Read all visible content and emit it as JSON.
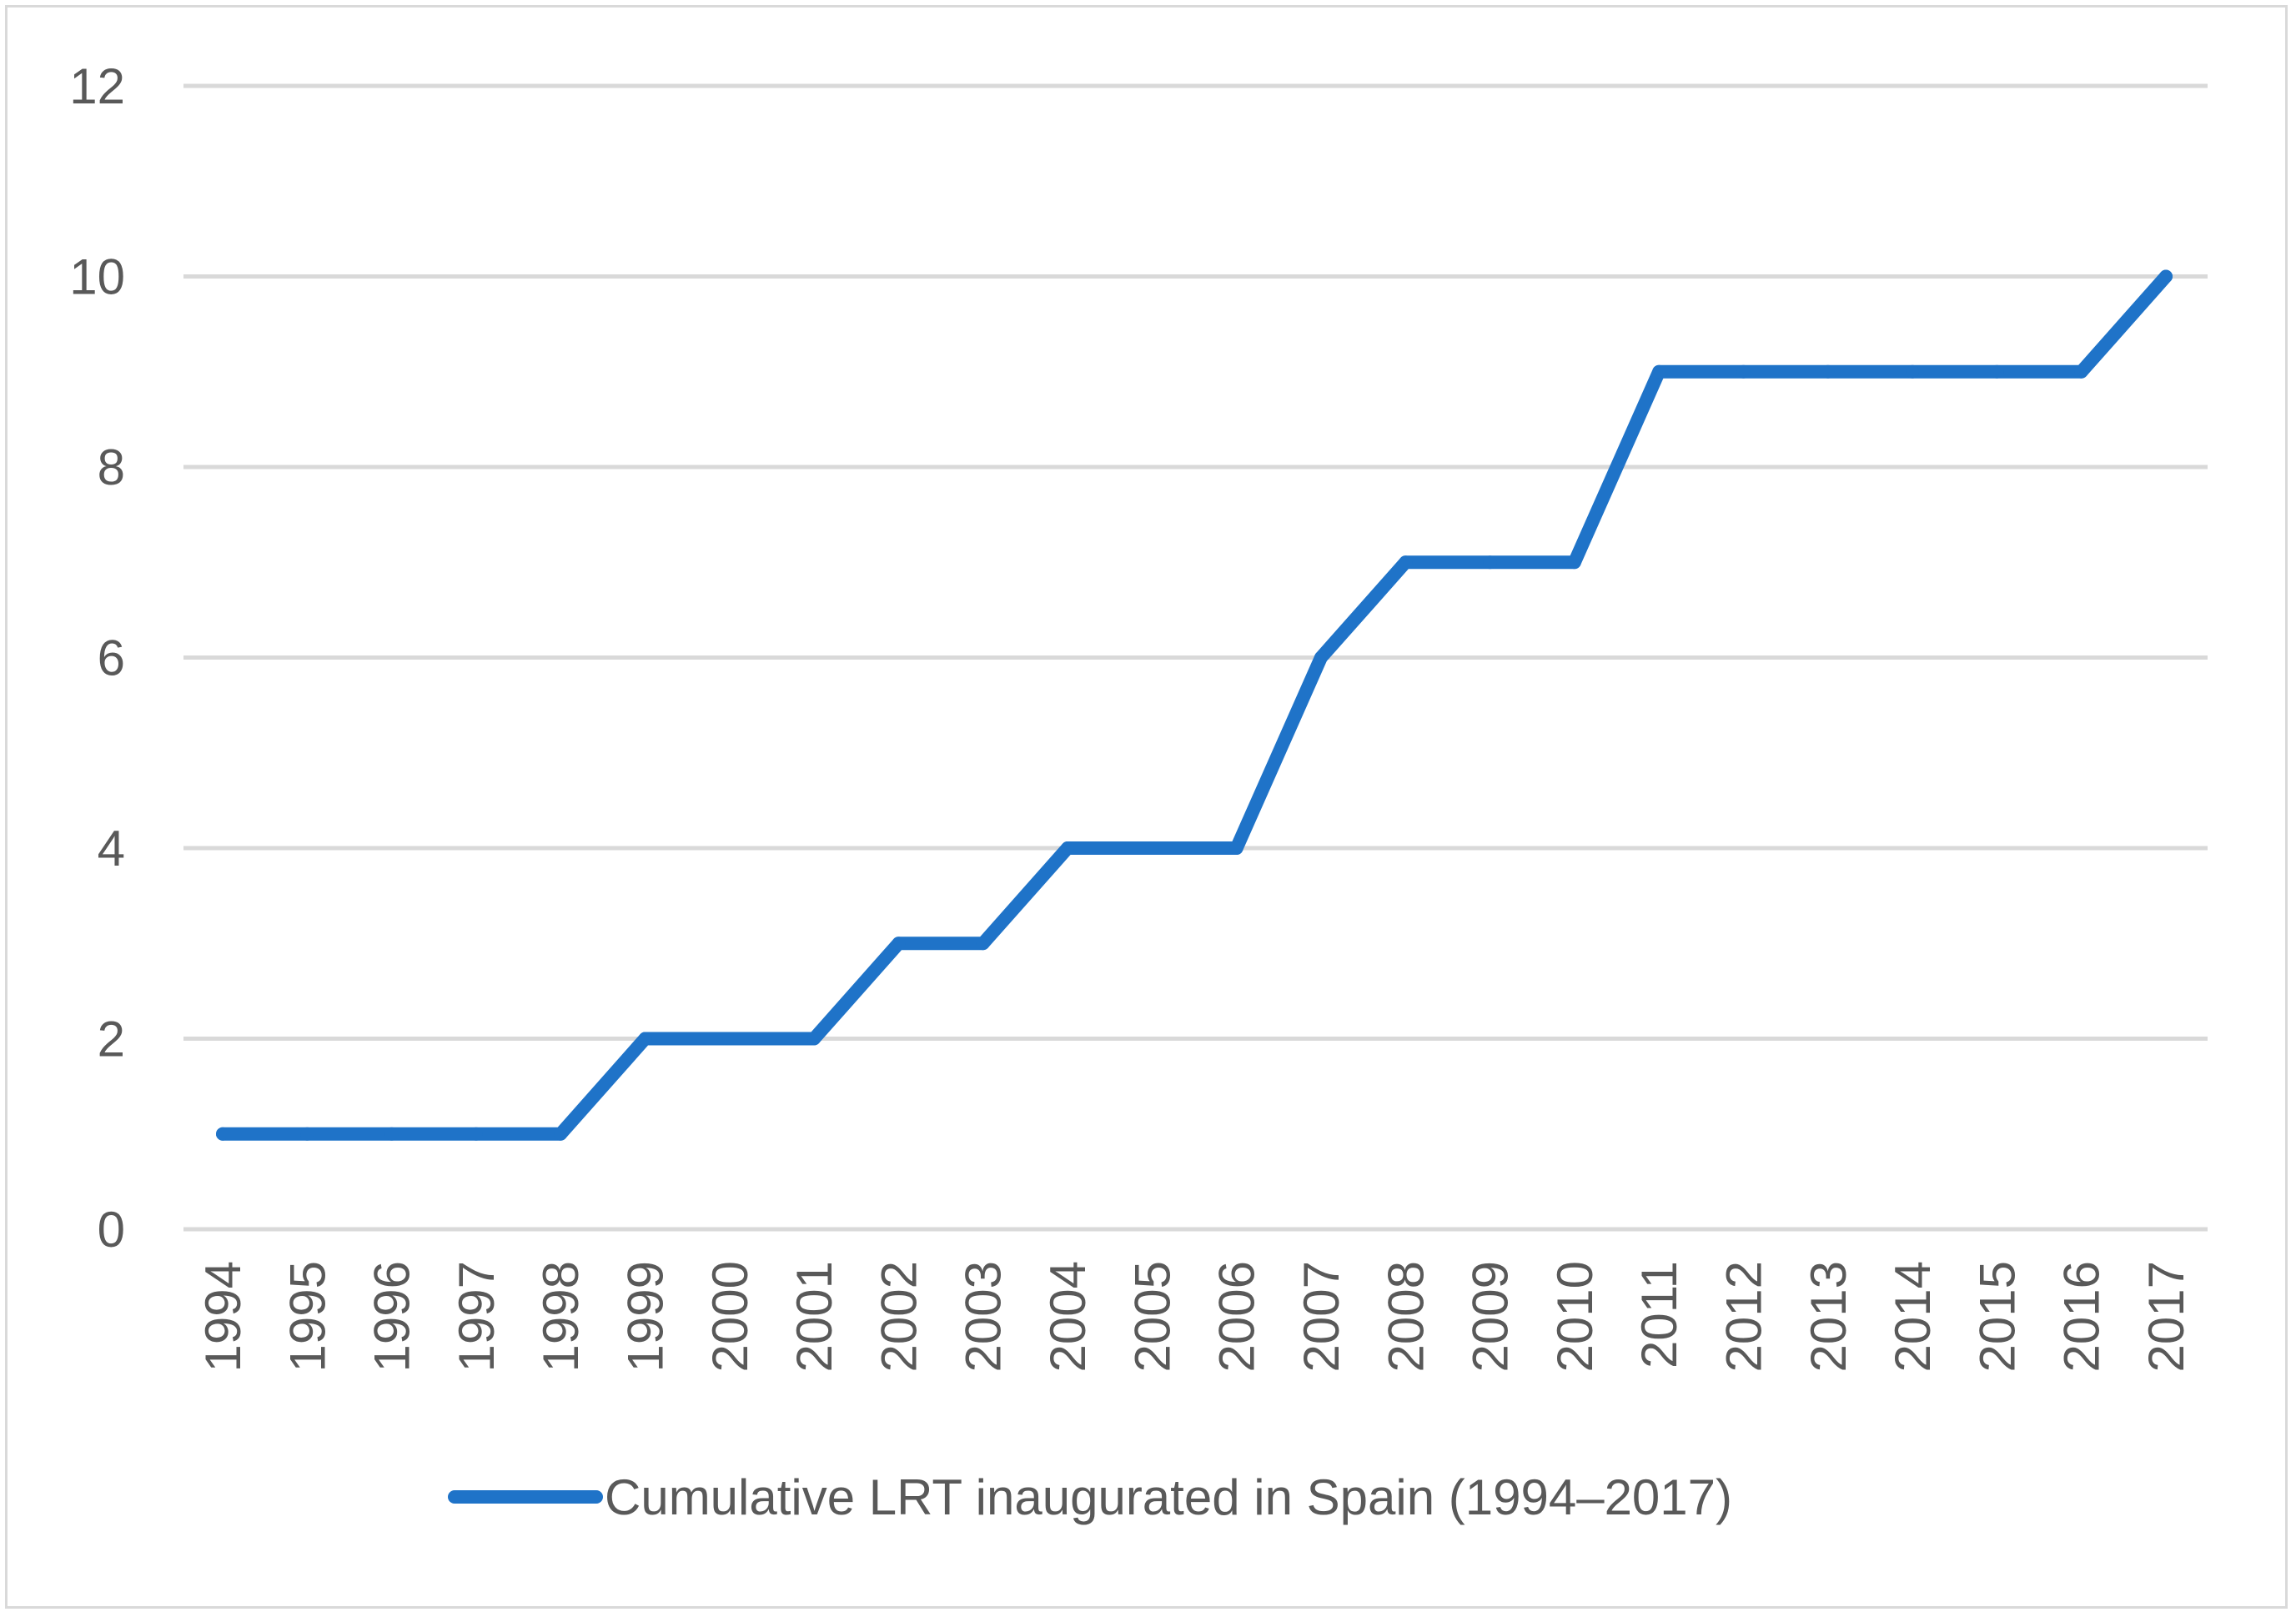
{
  "chart_data": {
    "type": "line",
    "title": "",
    "xlabel": "",
    "ylabel": "",
    "x": [
      "1994",
      "1995",
      "1996",
      "1997",
      "1998",
      "1999",
      "2000",
      "2001",
      "2002",
      "2003",
      "2004",
      "2005",
      "2006",
      "2007",
      "2008",
      "2009",
      "2010",
      "2011",
      "2012",
      "2013",
      "2014",
      "2015",
      "2016",
      "2017"
    ],
    "series": [
      {
        "name": "Cumulative LRT inaugurated in Spain (1994–2017)",
        "values": [
          1,
          1,
          1,
          1,
          1,
          2,
          2,
          2,
          3,
          3,
          4,
          4,
          4,
          6,
          7,
          7,
          7,
          9,
          9,
          9,
          9,
          9,
          9,
          10
        ],
        "color": "#1f73c8"
      }
    ],
    "ylim": [
      0,
      12
    ],
    "yticks": [
      0,
      2,
      4,
      6,
      8,
      10,
      12
    ],
    "grid": true,
    "legend_position": "bottom-center"
  }
}
